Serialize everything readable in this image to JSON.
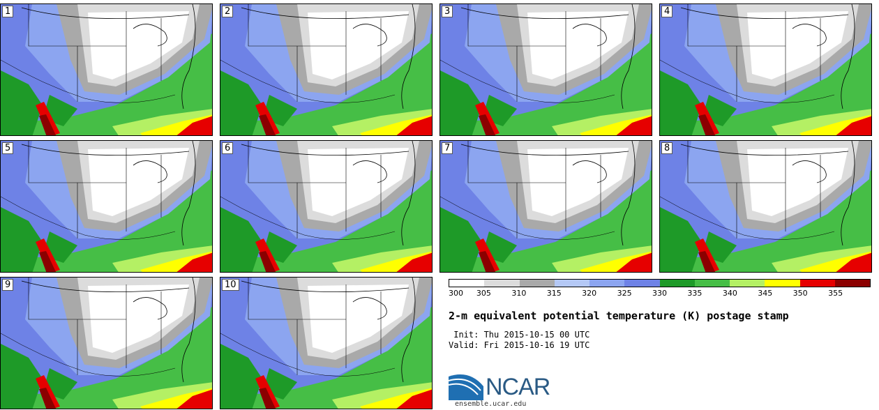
{
  "figure": {
    "title": "2-m equivalent potential temperature (K) postage stamp",
    "init_line": " Init: Thu 2015-10-15 00 UTC",
    "valid_line": "Valid: Fri 2015-10-16 19 UTC"
  },
  "panels": [
    {
      "label": "1"
    },
    {
      "label": "2"
    },
    {
      "label": "3"
    },
    {
      "label": "4"
    },
    {
      "label": "5"
    },
    {
      "label": "6"
    },
    {
      "label": "7"
    },
    {
      "label": "8"
    },
    {
      "label": "9"
    },
    {
      "label": "10"
    }
  ],
  "colorbar": {
    "ticks": [
      "300",
      "305",
      "310",
      "315",
      "320",
      "325",
      "330",
      "335",
      "340",
      "345",
      "350",
      "355"
    ],
    "colors": [
      "#ffffff",
      "#dcdcdc",
      "#a9a9a9",
      "#b4c8f5",
      "#8ca5f0",
      "#6e82e6",
      "#1e9a28",
      "#46be46",
      "#b4f064",
      "#ffff00",
      "#e60000",
      "#8b0000"
    ]
  },
  "logo": {
    "name": "NCAR",
    "url": "ensemble.ucar.edu",
    "brand_color": "#2a5a84"
  }
}
